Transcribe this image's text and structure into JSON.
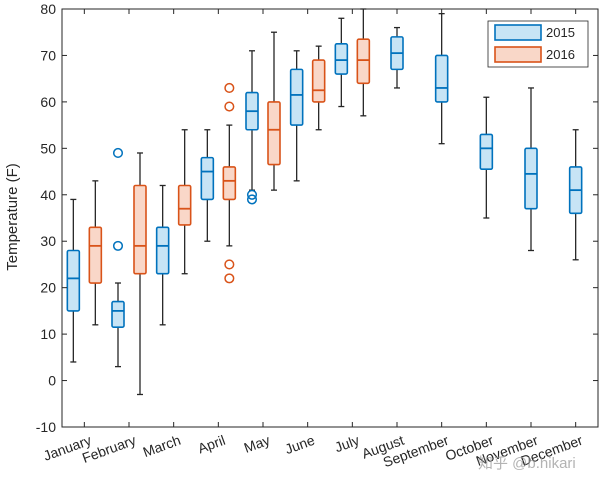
{
  "chart_data": {
    "type": "boxplot",
    "title": "",
    "xlabel": "",
    "ylabel": "Temperature (F)",
    "ylim": [
      -10,
      80
    ],
    "yticks": [
      -10,
      0,
      10,
      20,
      30,
      40,
      50,
      60,
      70,
      80
    ],
    "categories": [
      "January",
      "February",
      "March",
      "April",
      "May",
      "June",
      "July",
      "August",
      "September",
      "October",
      "November",
      "December"
    ],
    "legend": {
      "position": "top-right",
      "entries": [
        "2015",
        "2016"
      ]
    },
    "watermark": "知乎 @b.hikari",
    "series": [
      {
        "name": "2015",
        "stroke": "#0072BD",
        "fill": "#C7E4F5",
        "boxes": [
          {
            "month": "January",
            "min": 4,
            "q1": 15,
            "median": 22,
            "q3": 28,
            "max": 39,
            "outliers": []
          },
          {
            "month": "February",
            "min": 3,
            "q1": 11.5,
            "median": 15,
            "q3": 17,
            "max": 21,
            "outliers": [
              29,
              49
            ]
          },
          {
            "month": "March",
            "min": 12,
            "q1": 23,
            "median": 29,
            "q3": 33,
            "max": 42,
            "outliers": []
          },
          {
            "month": "April",
            "min": 30,
            "q1": 39,
            "median": 45,
            "q3": 48,
            "max": 54,
            "outliers": []
          },
          {
            "month": "May",
            "min": 41,
            "q1": 54,
            "median": 58,
            "q3": 62,
            "max": 71,
            "outliers": [
              39,
              40
            ]
          },
          {
            "month": "June",
            "min": 43,
            "q1": 55,
            "median": 61.5,
            "q3": 67,
            "max": 71,
            "outliers": []
          },
          {
            "month": "July",
            "min": 59,
            "q1": 66,
            "median": 69,
            "q3": 72.5,
            "max": 78,
            "outliers": []
          },
          {
            "month": "August",
            "min": 63,
            "q1": 67,
            "median": 70.5,
            "q3": 74,
            "max": 76,
            "outliers": []
          },
          {
            "month": "September",
            "min": 51,
            "q1": 60,
            "median": 63,
            "q3": 70,
            "max": 79,
            "outliers": []
          },
          {
            "month": "October",
            "min": 35,
            "q1": 45.5,
            "median": 50,
            "q3": 53,
            "max": 61,
            "outliers": []
          },
          {
            "month": "November",
            "min": 28,
            "q1": 37,
            "median": 44.5,
            "q3": 50,
            "max": 63,
            "outliers": []
          },
          {
            "month": "December",
            "min": 26,
            "q1": 36,
            "median": 41,
            "q3": 46,
            "max": 54,
            "outliers": []
          }
        ]
      },
      {
        "name": "2016",
        "stroke": "#D95319",
        "fill": "#F9D7C8",
        "boxes": [
          {
            "month": "January",
            "min": 12,
            "q1": 21,
            "median": 29,
            "q3": 33,
            "max": 43,
            "outliers": []
          },
          {
            "month": "February",
            "min": -3,
            "q1": 23,
            "median": 29,
            "q3": 42,
            "max": 49,
            "outliers": []
          },
          {
            "month": "March",
            "min": 23,
            "q1": 33.5,
            "median": 37,
            "q3": 42,
            "max": 54,
            "outliers": []
          },
          {
            "month": "April",
            "min": 29,
            "q1": 39,
            "median": 43,
            "q3": 46,
            "max": 55,
            "outliers": [
              22,
              25,
              59,
              63
            ]
          },
          {
            "month": "May",
            "min": 41,
            "q1": 46.5,
            "median": 54,
            "q3": 60,
            "max": 75,
            "outliers": []
          },
          {
            "month": "June",
            "min": 54,
            "q1": 60,
            "median": 62.5,
            "q3": 69,
            "max": 72,
            "outliers": []
          },
          {
            "month": "July",
            "min": 57,
            "q1": 64,
            "median": 69,
            "q3": 73.5,
            "max": 80,
            "outliers": []
          }
        ]
      }
    ]
  }
}
